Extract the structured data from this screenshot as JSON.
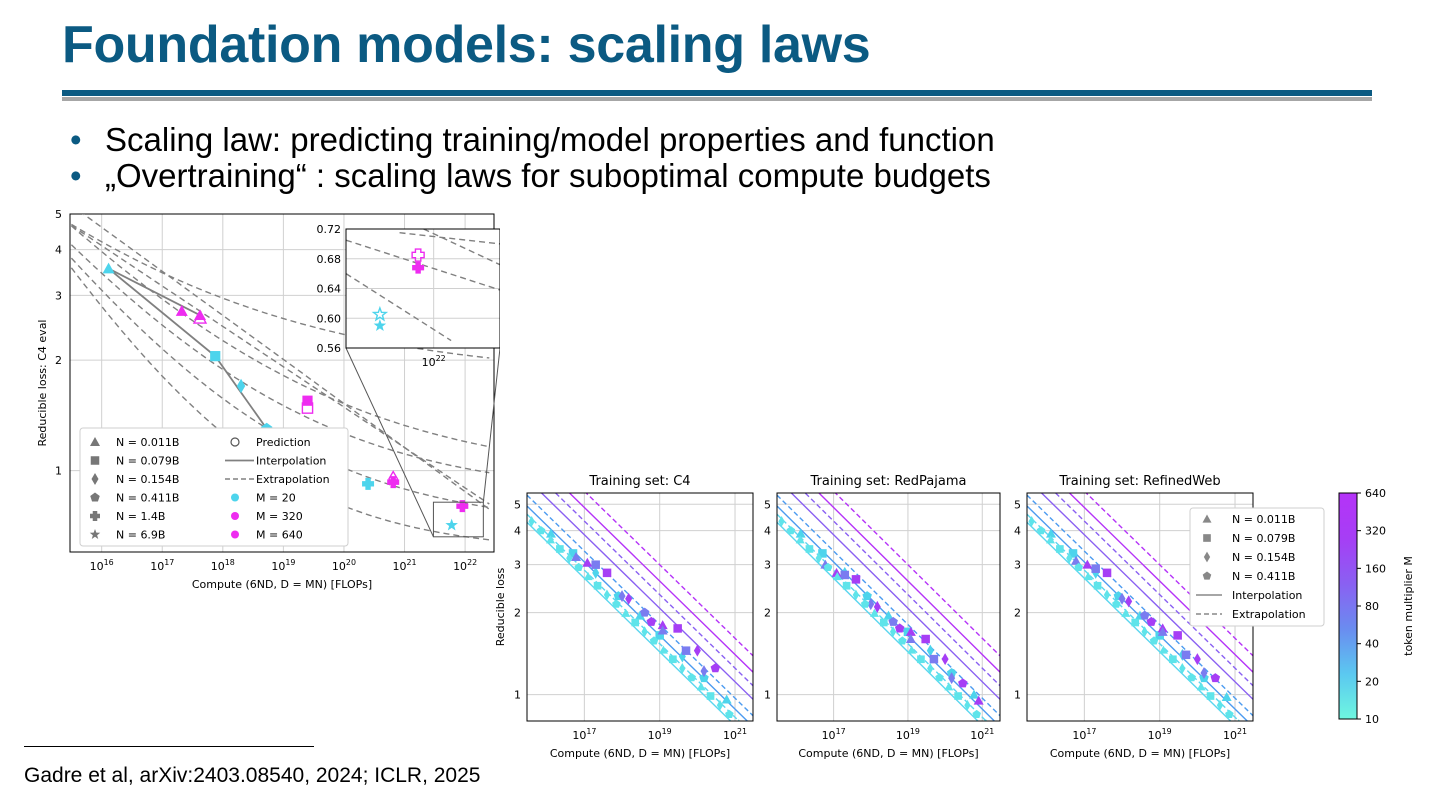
{
  "slide": {
    "title": "Foundation models: scaling laws",
    "bullets": [
      "Scaling law: predicting training/model properties and function",
      "„Overtraining“ : scaling laws for suboptimal compute budgets"
    ],
    "footnote": "Gadre et al, arXiv:2403.08540, 2024; ICLR, 2025"
  },
  "colors": {
    "title": "#0b5a82",
    "rule": "#0b5a82",
    "rule_secondary": "#a6a6a6",
    "cyan": "#4dd4ec",
    "magenta": "#ee2cf0",
    "purple": "#a63ef5",
    "gray": "#808080"
  },
  "chart_data": [
    {
      "type": "scatter",
      "xlabel": "Compute (6ND, D = MN) [FLOPs]",
      "ylabel": "Reducible loss: C4 eval",
      "xscale": "log",
      "yscale": "log",
      "xlim": [
        3000000000000000.0,
        3e+22
      ],
      "ylim": [
        0.6,
        5
      ],
      "xticks": [
        "10^16",
        "10^17",
        "10^18",
        "10^19",
        "10^20",
        "10^21",
        "10^22"
      ],
      "yticks": [
        "1",
        "2",
        "3",
        "4",
        "5"
      ],
      "grid": true,
      "legend": {
        "placement": "lower-left",
        "entries": [
          {
            "label": "N = 0.011B",
            "marker": "triangle"
          },
          {
            "label": "N = 0.079B",
            "marker": "square"
          },
          {
            "label": "N = 0.154B",
            "marker": "diamond"
          },
          {
            "label": "N = 0.411B",
            "marker": "pentagon"
          },
          {
            "label": "N = 1.4B",
            "marker": "plus"
          },
          {
            "label": "N = 6.9B",
            "marker": "star"
          },
          {
            "label": "Prediction",
            "marker": "open-circle"
          },
          {
            "label": "Interpolation",
            "marker": "solid-line"
          },
          {
            "label": "Extrapolation",
            "marker": "dashed-line"
          },
          {
            "label": "M = 20",
            "marker": "cyan-dot"
          },
          {
            "label": "M = 320",
            "marker": "magenta-dot"
          },
          {
            "label": "M = 640",
            "marker": "magenta-dot"
          }
        ]
      },
      "points": [
        {
          "x": 1.3e+16,
          "y": 3.55,
          "marker": "triangle",
          "m": 20
        },
        {
          "x": 2.1e+17,
          "y": 2.72,
          "marker": "triangle",
          "m": 320
        },
        {
          "x": 4.2e+17,
          "y": 2.65,
          "marker": "triangle",
          "m": 640
        },
        {
          "x": 7.5e+17,
          "y": 2.05,
          "marker": "square",
          "m": 20
        },
        {
          "x": 2.5e+19,
          "y": 1.55,
          "marker": "square",
          "m": 640
        },
        {
          "x": 2e+18,
          "y": 1.7,
          "marker": "diamond",
          "m": 20
        },
        {
          "x": 9.5e+19,
          "y": 1.25,
          "marker": "diamond",
          "m": 640
        },
        {
          "x": 5.3e+18,
          "y": 1.3,
          "marker": "pentagon",
          "m": 20
        },
        {
          "x": 2.5e+20,
          "y": 0.92,
          "marker": "plus",
          "m": 20
        },
        {
          "x": 6.5e+20,
          "y": 0.93,
          "marker": "plus",
          "m": 640
        },
        {
          "x": 6e+21,
          "y": 0.71,
          "marker": "star",
          "m": 20
        },
        {
          "x": 9e+21,
          "y": 0.8,
          "marker": "plus",
          "m": 640
        }
      ],
      "inset": {
        "xlim": [
          4e+21,
          2e+22
        ],
        "ylim": [
          0.56,
          0.72
        ],
        "xticks": [
          "10^22"
        ],
        "yticks": [
          "0.56",
          "0.60",
          "0.64",
          "0.68",
          "0.72"
        ],
        "points": [
          {
            "x": 5.7e+21,
            "y": 0.605,
            "marker": "open-star",
            "m": 20
          },
          {
            "x": 5.7e+21,
            "y": 0.59,
            "marker": "star",
            "m": 20
          },
          {
            "x": 8.5e+21,
            "y": 0.685,
            "marker": "open-plus",
            "m": 640
          },
          {
            "x": 8.5e+21,
            "y": 0.668,
            "marker": "plus",
            "m": 640
          }
        ]
      }
    },
    {
      "type": "scatter",
      "title": "Training set: C4",
      "xlabel": "Compute (6ND, D = MN) [FLOPs]",
      "ylabel": "Reducible loss",
      "xscale": "log",
      "yscale": "log",
      "xlim": [
        3000000000000000.0,
        3e+21
      ],
      "ylim": [
        0.8,
        5.5
      ],
      "xticks": [
        "10^17",
        "10^19",
        "10^21"
      ],
      "yticks": [
        "1",
        "2",
        "3",
        "4",
        "5"
      ],
      "grid": true
    },
    {
      "type": "scatter",
      "title": "Training set: RedPajama",
      "xlabel": "Compute (6ND, D = MN) [FLOPs]",
      "xscale": "log",
      "yscale": "log",
      "xlim": [
        3000000000000000.0,
        3e+21
      ],
      "ylim": [
        0.8,
        5.5
      ],
      "xticks": [
        "10^17",
        "10^19",
        "10^21"
      ],
      "yticks": [
        "1",
        "2",
        "3",
        "4",
        "5"
      ],
      "grid": true
    },
    {
      "type": "scatter",
      "title": "Training set: RefinedWeb",
      "xlabel": "Compute (6ND, D = MN) [FLOPs]",
      "xscale": "log",
      "yscale": "log",
      "xlim": [
        3000000000000000.0,
        3e+21
      ],
      "ylim": [
        0.8,
        5.5
      ],
      "xticks": [
        "10^17",
        "10^19",
        "10^21"
      ],
      "yticks": [
        "1",
        "2",
        "3",
        "4",
        "5"
      ],
      "grid": true,
      "legend": {
        "placement": "upper-right",
        "entries": [
          {
            "label": "N = 0.011B",
            "marker": "triangle"
          },
          {
            "label": "N = 0.079B",
            "marker": "square"
          },
          {
            "label": "N = 0.154B",
            "marker": "diamond"
          },
          {
            "label": "N = 0.411B",
            "marker": "pentagon"
          },
          {
            "label": "Interpolation",
            "marker": "solid-line"
          },
          {
            "label": "Extrapolation",
            "marker": "dashed-line"
          }
        ]
      }
    },
    {
      "type": "heatmap",
      "label": "token multiplier M",
      "ticks": [
        "10",
        "20",
        "40",
        "80",
        "160",
        "320",
        "640"
      ],
      "colors": [
        "#6ef7e0",
        "#5bc8f0",
        "#6a8cf0",
        "#8a60f2",
        "#a63ef5",
        "#b533f8"
      ]
    }
  ],
  "slide_panels": {
    "p1": {
      "name": "C4",
      "series": [
        {
          "m": 20,
          "color": "#4dd4ec",
          "pts": [
            [
              1.3e+16,
              3.9
            ],
            [
              5e+16,
              3.3
            ],
            [
              2e+17,
              2.8
            ],
            [
              8e+17,
              2.3
            ],
            [
              3e+18,
              1.95
            ],
            [
              1e+19,
              1.65
            ],
            [
              4e+19,
              1.38
            ],
            [
              1.5e+20,
              1.15
            ],
            [
              6e+20,
              0.96
            ]
          ]
        },
        {
          "m": 320,
          "color": "#a63ef5",
          "pts": [
            [
              1.2e+17,
              3.05
            ],
            [
              4e+17,
              2.8
            ],
            [
              1.5e+18,
              2.25
            ],
            [
              6e+18,
              1.85
            ],
            [
              1.2e+19,
              1.8
            ],
            [
              3e+19,
              1.75
            ],
            [
              1e+20,
              1.45
            ],
            [
              3e+20,
              1.25
            ]
          ]
        },
        {
          "m": 80,
          "color": "#7a7cf0",
          "pts": [
            [
              6e+16,
              3.2
            ],
            [
              2e+17,
              3.0
            ],
            [
              1e+18,
              2.3
            ],
            [
              4e+18,
              2.0
            ],
            [
              1.2e+19,
              1.72
            ],
            [
              5e+19,
              1.45
            ],
            [
              1.5e+20,
              1.22
            ]
          ]
        }
      ]
    },
    "p2": {
      "name": "RedPajama",
      "series": [
        {
          "m": 20,
          "color": "#4dd4ec",
          "pts": [
            [
              1.3e+16,
              3.9
            ],
            [
              5e+16,
              3.3
            ],
            [
              2e+17,
              2.8
            ],
            [
              8e+17,
              2.3
            ],
            [
              3e+18,
              1.95
            ],
            [
              1e+19,
              1.7
            ],
            [
              4e+19,
              1.45
            ],
            [
              1.5e+20,
              1.2
            ],
            [
              6e+20,
              1.0
            ]
          ]
        },
        {
          "m": 320,
          "color": "#a63ef5",
          "pts": [
            [
              1.2e+17,
              2.8
            ],
            [
              4e+17,
              2.65
            ],
            [
              1.5e+18,
              2.1
            ],
            [
              6e+18,
              1.75
            ],
            [
              1.2e+19,
              1.7
            ],
            [
              3e+19,
              1.6
            ],
            [
              1e+20,
              1.35
            ],
            [
              3e+20,
              1.1
            ],
            [
              8e+20,
              0.95
            ]
          ]
        },
        {
          "m": 80,
          "color": "#7a7cf0",
          "pts": [
            [
              6e+16,
              3.0
            ],
            [
              2e+17,
              2.75
            ],
            [
              1e+18,
              2.15
            ],
            [
              4e+18,
              1.85
            ],
            [
              1.2e+19,
              1.6
            ],
            [
              5e+19,
              1.35
            ],
            [
              1.5e+20,
              1.15
            ]
          ]
        }
      ]
    },
    "p3": {
      "name": "RefinedWeb",
      "series": [
        {
          "m": 20,
          "color": "#4dd4ec",
          "pts": [
            [
              1.3e+16,
              3.9
            ],
            [
              5e+16,
              3.3
            ],
            [
              2e+17,
              2.8
            ],
            [
              8e+17,
              2.3
            ],
            [
              3e+18,
              1.95
            ],
            [
              1e+19,
              1.65
            ],
            [
              4e+19,
              1.4
            ],
            [
              1.5e+20,
              1.15
            ],
            [
              6e+20,
              0.98
            ]
          ]
        },
        {
          "m": 320,
          "color": "#a63ef5",
          "pts": [
            [
              1.2e+17,
              3.0
            ],
            [
              4e+17,
              2.8
            ],
            [
              1.5e+18,
              2.2
            ],
            [
              6e+18,
              1.85
            ],
            [
              1.2e+19,
              1.75
            ],
            [
              3e+19,
              1.65
            ],
            [
              1e+20,
              1.35
            ],
            [
              3e+20,
              1.15
            ]
          ]
        },
        {
          "m": 80,
          "color": "#7a7cf0",
          "pts": [
            [
              6e+16,
              3.1
            ],
            [
              2e+17,
              2.9
            ],
            [
              1e+18,
              2.25
            ],
            [
              4e+18,
              1.95
            ],
            [
              1.2e+19,
              1.7
            ],
            [
              5e+19,
              1.4
            ],
            [
              1.5e+20,
              1.2
            ]
          ]
        }
      ]
    }
  }
}
